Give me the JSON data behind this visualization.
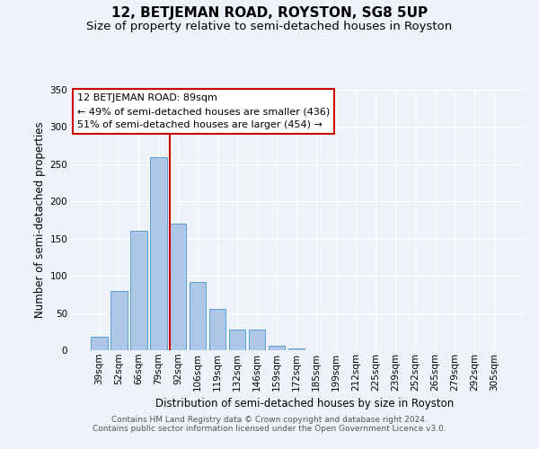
{
  "title": "12, BETJEMAN ROAD, ROYSTON, SG8 5UP",
  "subtitle": "Size of property relative to semi-detached houses in Royston",
  "xlabel": "Distribution of semi-detached houses by size in Royston",
  "ylabel": "Number of semi-detached properties",
  "bar_labels": [
    "39sqm",
    "52sqm",
    "66sqm",
    "79sqm",
    "92sqm",
    "106sqm",
    "119sqm",
    "132sqm",
    "146sqm",
    "159sqm",
    "172sqm",
    "185sqm",
    "199sqm",
    "212sqm",
    "225sqm",
    "239sqm",
    "252sqm",
    "265sqm",
    "279sqm",
    "292sqm",
    "305sqm"
  ],
  "bar_values": [
    18,
    80,
    160,
    260,
    170,
    92,
    55,
    28,
    28,
    6,
    3,
    0,
    0,
    0,
    0,
    0,
    0,
    0,
    0,
    0,
    0
  ],
  "bar_color": "#aec6e8",
  "bar_edge_color": "#5a9fd4",
  "red_line_bar_index": 4,
  "red_line_color": "#cc0000",
  "ylim": [
    0,
    350
  ],
  "yticks": [
    0,
    50,
    100,
    150,
    200,
    250,
    300,
    350
  ],
  "annotation_title": "12 BETJEMAN ROAD: 89sqm",
  "annotation_line1": "← 49% of semi-detached houses are smaller (436)",
  "annotation_line2": "51% of semi-detached houses are larger (454) →",
  "annotation_box_color": "#ffffff",
  "annotation_border_color": "#cc0000",
  "footer_line1": "Contains HM Land Registry data © Crown copyright and database right 2024.",
  "footer_line2": "Contains public sector information licensed under the Open Government Licence v3.0.",
  "background_color": "#eef2f9",
  "grid_color": "#ffffff",
  "title_fontsize": 11,
  "subtitle_fontsize": 9.5,
  "axis_label_fontsize": 8.5,
  "tick_fontsize": 7.5,
  "annotation_fontsize": 8,
  "footer_fontsize": 6.5
}
